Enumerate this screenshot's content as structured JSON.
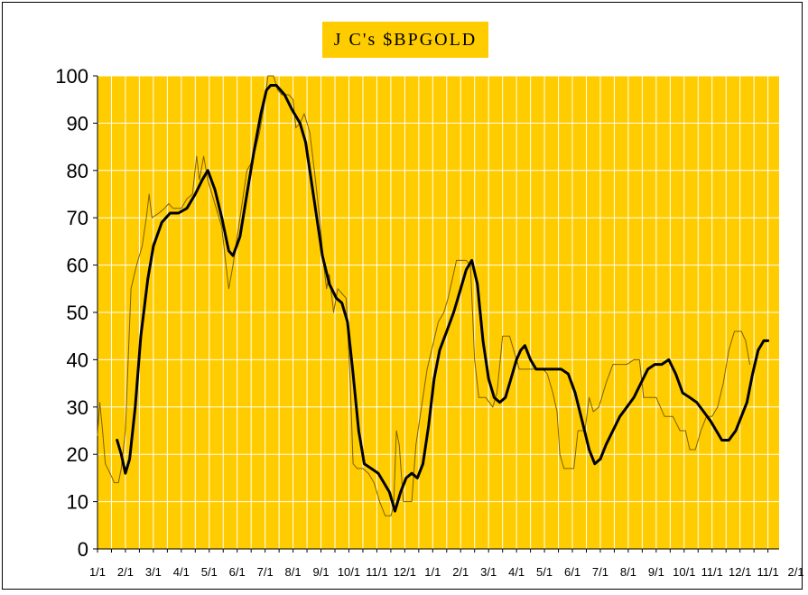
{
  "colors": {
    "plot_bg": "#FFCC00",
    "title_bg": "#FFCC00",
    "grid": "#FFFFFF",
    "thin_line": "#806000",
    "smooth_line": "#000000"
  },
  "chart_data": {
    "type": "line",
    "title": "J C's $BPGOLD",
    "xlabel": "",
    "ylabel": "",
    "ylim": [
      0,
      100
    ],
    "y_ticks": [
      0,
      10,
      20,
      30,
      40,
      50,
      60,
      70,
      80,
      90,
      100
    ],
    "x_tick_labels": [
      "1/1",
      "2/1",
      "3/1",
      "4/1",
      "5/1",
      "6/1",
      "7/1",
      "8/1",
      "9/1",
      "10/1",
      "11/1",
      "12/1",
      "1/1",
      "2/1",
      "3/1",
      "4/1",
      "5/1",
      "6/1",
      "7/1",
      "8/1",
      "9/1",
      "10/1",
      "11/1",
      "12/1",
      "11/1",
      "2/1"
    ],
    "x_note": "x = months since first 1/1 tick",
    "grid": true,
    "legend": "none",
    "series": [
      {
        "style": "thin",
        "points": [
          [
            0.0,
            24
          ],
          [
            0.08,
            31
          ],
          [
            0.18,
            25
          ],
          [
            0.28,
            18
          ],
          [
            0.45,
            16
          ],
          [
            0.6,
            14
          ],
          [
            0.75,
            14
          ],
          [
            0.85,
            17
          ],
          [
            1.0,
            25
          ],
          [
            1.1,
            40
          ],
          [
            1.2,
            55
          ],
          [
            1.4,
            60
          ],
          [
            1.6,
            64
          ],
          [
            1.75,
            70
          ],
          [
            1.85,
            75
          ],
          [
            1.95,
            70
          ],
          [
            2.2,
            71
          ],
          [
            2.4,
            72
          ],
          [
            2.55,
            73
          ],
          [
            2.7,
            72
          ],
          [
            3.0,
            72
          ],
          [
            3.2,
            74
          ],
          [
            3.4,
            75
          ],
          [
            3.55,
            83
          ],
          [
            3.65,
            78
          ],
          [
            3.8,
            83
          ],
          [
            3.95,
            78
          ],
          [
            4.05,
            76
          ],
          [
            4.25,
            72
          ],
          [
            4.45,
            68
          ],
          [
            4.6,
            60
          ],
          [
            4.7,
            55
          ],
          [
            4.85,
            60
          ],
          [
            5.0,
            66
          ],
          [
            5.15,
            72
          ],
          [
            5.35,
            80
          ],
          [
            5.55,
            82
          ],
          [
            5.8,
            88
          ],
          [
            6.0,
            95
          ],
          [
            6.1,
            100
          ],
          [
            6.3,
            100
          ],
          [
            6.45,
            97
          ],
          [
            6.6,
            96
          ],
          [
            6.85,
            96
          ],
          [
            7.0,
            95
          ],
          [
            7.1,
            89
          ],
          [
            7.25,
            90
          ],
          [
            7.4,
            92
          ],
          [
            7.6,
            88
          ],
          [
            7.8,
            78
          ],
          [
            7.95,
            70
          ],
          [
            8.1,
            60
          ],
          [
            8.2,
            55
          ],
          [
            8.3,
            58
          ],
          [
            8.45,
            50
          ],
          [
            8.6,
            55
          ],
          [
            8.75,
            54
          ],
          [
            8.9,
            53
          ],
          [
            9.05,
            35
          ],
          [
            9.15,
            18
          ],
          [
            9.3,
            17
          ],
          [
            9.5,
            17
          ],
          [
            9.7,
            16
          ],
          [
            9.9,
            14
          ],
          [
            10.1,
            10
          ],
          [
            10.3,
            7
          ],
          [
            10.5,
            7
          ],
          [
            10.6,
            9
          ],
          [
            10.7,
            25
          ],
          [
            10.8,
            22
          ],
          [
            10.95,
            10
          ],
          [
            11.1,
            10
          ],
          [
            11.25,
            10
          ],
          [
            11.4,
            22
          ],
          [
            11.6,
            30
          ],
          [
            11.8,
            38
          ],
          [
            12.0,
            43
          ],
          [
            12.2,
            48
          ],
          [
            12.4,
            50
          ],
          [
            12.55,
            53
          ],
          [
            12.7,
            57
          ],
          [
            12.85,
            61
          ],
          [
            13.0,
            61
          ],
          [
            13.2,
            61
          ],
          [
            13.35,
            60
          ],
          [
            13.5,
            40
          ],
          [
            13.65,
            32
          ],
          [
            13.9,
            32
          ],
          [
            14.15,
            30
          ],
          [
            14.3,
            33
          ],
          [
            14.5,
            45
          ],
          [
            14.75,
            45
          ],
          [
            14.95,
            41
          ],
          [
            15.1,
            38
          ],
          [
            15.4,
            38
          ],
          [
            15.7,
            38
          ],
          [
            15.95,
            38
          ],
          [
            16.1,
            37
          ],
          [
            16.3,
            33
          ],
          [
            16.45,
            29
          ],
          [
            16.55,
            20
          ],
          [
            16.7,
            17
          ],
          [
            16.85,
            17
          ],
          [
            17.05,
            17
          ],
          [
            17.2,
            25
          ],
          [
            17.45,
            25
          ],
          [
            17.6,
            32
          ],
          [
            17.75,
            29
          ],
          [
            17.95,
            30
          ],
          [
            18.2,
            35
          ],
          [
            18.45,
            39
          ],
          [
            18.7,
            39
          ],
          [
            18.95,
            39
          ],
          [
            19.2,
            40
          ],
          [
            19.4,
            40
          ],
          [
            19.55,
            32
          ],
          [
            19.8,
            32
          ],
          [
            20.0,
            32
          ],
          [
            20.3,
            28
          ],
          [
            20.6,
            28
          ],
          [
            20.85,
            25
          ],
          [
            21.05,
            25
          ],
          [
            21.2,
            21
          ],
          [
            21.4,
            21
          ],
          [
            21.6,
            25
          ],
          [
            21.8,
            28
          ],
          [
            22.0,
            28
          ],
          [
            22.2,
            30
          ],
          [
            22.4,
            35
          ],
          [
            22.6,
            42
          ],
          [
            22.8,
            46
          ],
          [
            23.05,
            46
          ],
          [
            23.2,
            44
          ],
          [
            23.35,
            39
          ]
        ]
      },
      {
        "style": "smooth-bold",
        "points": [
          [
            0.7,
            23
          ],
          [
            0.85,
            20
          ],
          [
            1.0,
            16
          ],
          [
            1.15,
            19
          ],
          [
            1.35,
            30
          ],
          [
            1.55,
            45
          ],
          [
            1.8,
            57
          ],
          [
            2.0,
            64
          ],
          [
            2.3,
            69
          ],
          [
            2.6,
            71
          ],
          [
            2.9,
            71
          ],
          [
            3.2,
            72
          ],
          [
            3.5,
            75
          ],
          [
            3.75,
            78
          ],
          [
            3.95,
            80
          ],
          [
            4.2,
            76
          ],
          [
            4.45,
            70
          ],
          [
            4.7,
            63
          ],
          [
            4.85,
            62
          ],
          [
            5.1,
            66
          ],
          [
            5.35,
            75
          ],
          [
            5.6,
            84
          ],
          [
            5.85,
            92
          ],
          [
            6.05,
            97
          ],
          [
            6.2,
            98
          ],
          [
            6.4,
            98
          ],
          [
            6.7,
            96
          ],
          [
            6.95,
            93
          ],
          [
            7.25,
            90
          ],
          [
            7.45,
            86
          ],
          [
            7.65,
            78
          ],
          [
            7.85,
            70
          ],
          [
            8.05,
            62
          ],
          [
            8.3,
            56
          ],
          [
            8.55,
            53
          ],
          [
            8.75,
            52
          ],
          [
            8.95,
            48
          ],
          [
            9.15,
            37
          ],
          [
            9.35,
            25
          ],
          [
            9.55,
            18
          ],
          [
            9.8,
            17
          ],
          [
            10.05,
            16
          ],
          [
            10.25,
            14
          ],
          [
            10.45,
            12
          ],
          [
            10.65,
            8
          ],
          [
            10.85,
            12
          ],
          [
            11.05,
            15
          ],
          [
            11.25,
            16
          ],
          [
            11.45,
            15
          ],
          [
            11.65,
            18
          ],
          [
            11.85,
            26
          ],
          [
            12.05,
            36
          ],
          [
            12.25,
            42
          ],
          [
            12.5,
            46
          ],
          [
            12.75,
            50
          ],
          [
            13.0,
            55
          ],
          [
            13.2,
            59
          ],
          [
            13.4,
            61
          ],
          [
            13.6,
            56
          ],
          [
            13.8,
            44
          ],
          [
            14.0,
            36
          ],
          [
            14.2,
            32
          ],
          [
            14.4,
            31
          ],
          [
            14.6,
            32
          ],
          [
            14.8,
            36
          ],
          [
            15.0,
            40
          ],
          [
            15.15,
            42
          ],
          [
            15.3,
            43
          ],
          [
            15.5,
            40
          ],
          [
            15.7,
            38
          ],
          [
            15.95,
            38
          ],
          [
            16.3,
            38
          ],
          [
            16.6,
            38
          ],
          [
            16.85,
            37
          ],
          [
            17.1,
            33
          ],
          [
            17.35,
            27
          ],
          [
            17.6,
            21
          ],
          [
            17.8,
            18
          ],
          [
            18.0,
            19
          ],
          [
            18.2,
            22
          ],
          [
            18.45,
            25
          ],
          [
            18.7,
            28
          ],
          [
            18.95,
            30
          ],
          [
            19.2,
            32
          ],
          [
            19.45,
            35
          ],
          [
            19.7,
            38
          ],
          [
            19.95,
            39
          ],
          [
            20.2,
            39
          ],
          [
            20.45,
            40
          ],
          [
            20.7,
            37
          ],
          [
            20.95,
            33
          ],
          [
            21.2,
            32
          ],
          [
            21.45,
            31
          ],
          [
            21.7,
            29
          ],
          [
            21.95,
            27
          ],
          [
            22.15,
            25
          ],
          [
            22.35,
            23
          ],
          [
            22.6,
            23
          ],
          [
            22.85,
            25
          ],
          [
            23.05,
            28
          ],
          [
            23.25,
            31
          ],
          [
            23.45,
            37
          ],
          [
            23.65,
            42
          ],
          [
            23.85,
            44
          ],
          [
            24.0,
            44
          ]
        ]
      }
    ]
  }
}
